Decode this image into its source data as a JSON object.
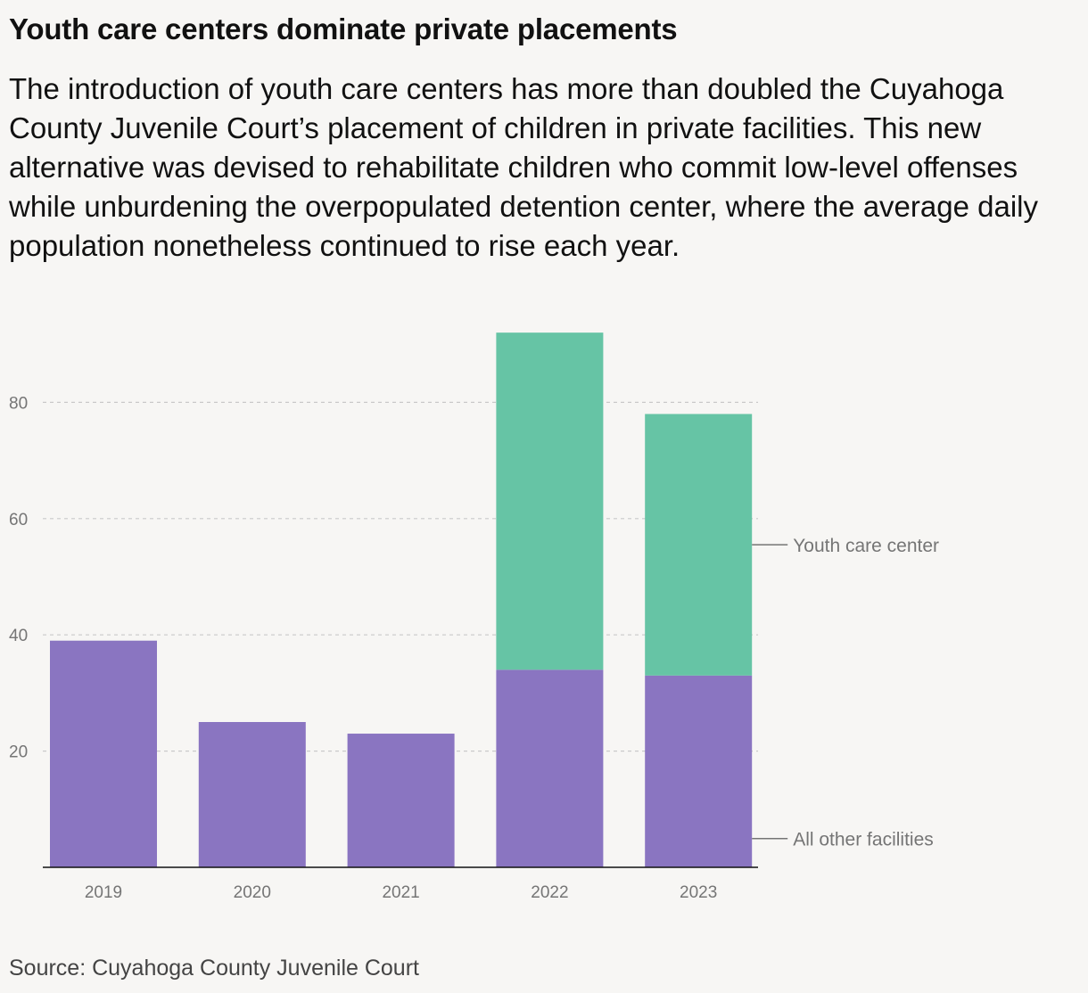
{
  "chart_data": {
    "type": "bar",
    "stacked": true,
    "title": "Youth care centers dominate private placements",
    "subtitle": "The introduction of youth care centers has more than doubled the Cuyahoga County Juvenile Court’s placement of children in private facilities. This new alternative was devised to rehabilitate children who commit low-level offenses while unburdening the overpopulated detention center, where the average daily population nonetheless continued to rise each year.",
    "categories": [
      "2019",
      "2020",
      "2021",
      "2022",
      "2023"
    ],
    "series": [
      {
        "name": "All other facilities",
        "values": [
          39,
          25,
          23,
          34,
          33
        ],
        "color": "#8a75c1"
      },
      {
        "name": "Youth care center",
        "values": [
          0,
          0,
          0,
          58,
          45
        ],
        "color": "#66c4a5"
      }
    ],
    "yticks": [
      20,
      40,
      60,
      80
    ],
    "ylim": [
      0,
      95
    ],
    "grid": true,
    "legend": "right, direct labels",
    "source": "Source: Cuyahoga County Juvenile Court",
    "colors": {
      "background": "#f7f6f4",
      "axis": "#111111",
      "gridline": "#c9c9c9",
      "label": "#757575"
    }
  }
}
